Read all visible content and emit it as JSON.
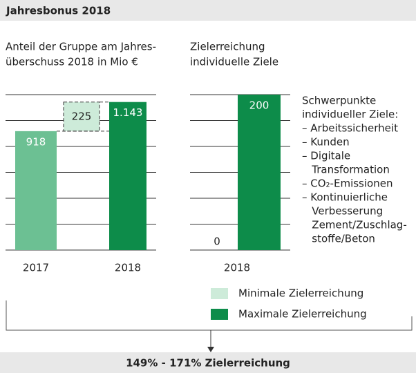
{
  "header": {
    "title": "Jahresbonus 2018"
  },
  "chart_data": [
    {
      "type": "waterfall",
      "title_lines": [
        "Anteil der Gruppe am Jahres-",
        "überschuss 2018 in Mio €"
      ],
      "categories": [
        "2017",
        null,
        "2018"
      ],
      "values": [
        918,
        225,
        1143
      ],
      "value_labels": [
        "918",
        "225",
        "1.143"
      ],
      "colors": [
        "#6cc093",
        "#cdebd9",
        "#0d8c4a"
      ],
      "ylim": [
        0,
        1200
      ],
      "yticks": [
        0,
        200,
        400,
        600,
        800,
        1000,
        1200
      ],
      "grid": true
    },
    {
      "type": "bar",
      "title_lines": [
        "Zielerreichung",
        "individuelle Ziele"
      ],
      "categories": [
        "2018"
      ],
      "series": [
        {
          "name": "Minimale Zielerreichung",
          "color": "#cdebd9",
          "values": [
            0
          ]
        },
        {
          "name": "Maximale Zielerreichung",
          "color": "#0d8c4a",
          "values": [
            200
          ]
        }
      ],
      "ylim": [
        0,
        200
      ],
      "yticks": [
        0,
        33.3,
        66.7,
        100,
        133.3,
        166.7,
        200
      ],
      "grid": true
    }
  ],
  "notes": {
    "lines": [
      "Schwerpunkte",
      "individueller Ziele:",
      "– Arbeitssicherheit",
      "– Kunden",
      "– Digitale",
      "   Transformation",
      "– CO₂-Emissionen",
      "– Kontinuierliche",
      "   Verbesserung",
      "   Zement/Zuschlag-",
      "   stoffe/Beton"
    ]
  },
  "result": "149% - 171% Zielerreichung"
}
